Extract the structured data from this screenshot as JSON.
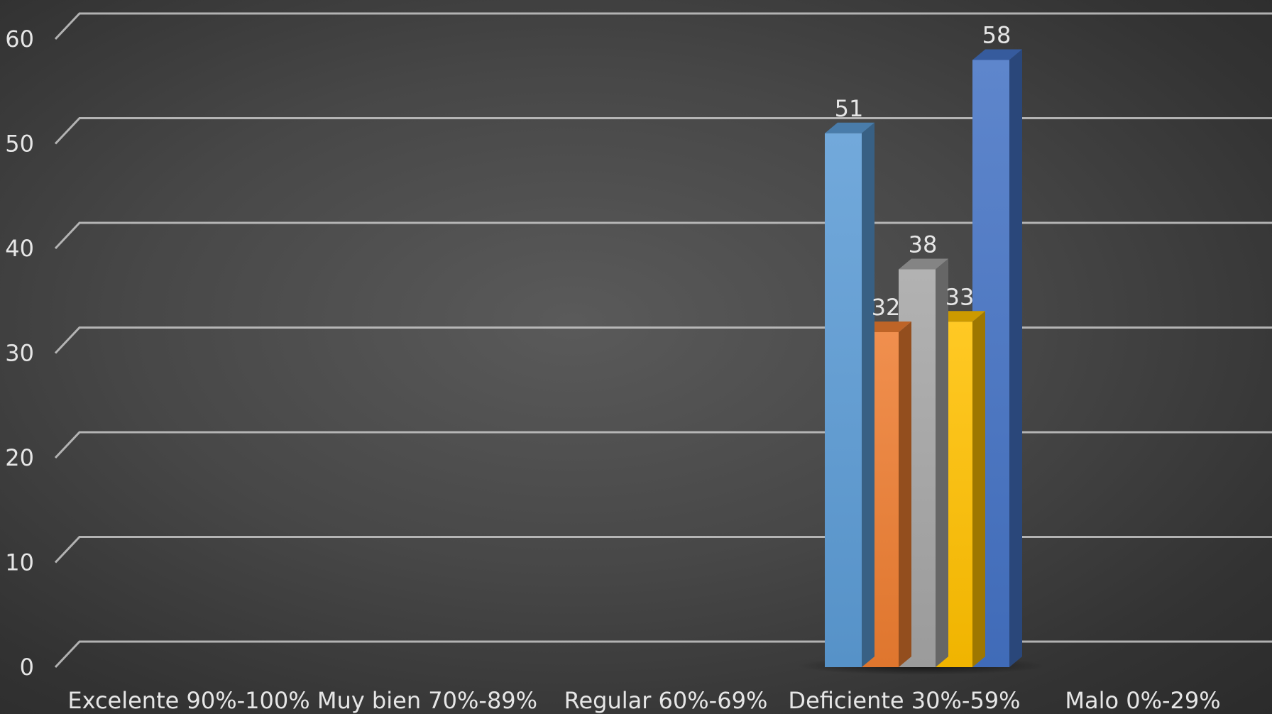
{
  "chart_data": {
    "type": "bar",
    "title": "",
    "xlabel": "",
    "ylabel": "",
    "ylim": [
      0,
      60
    ],
    "yticks": [
      0,
      10,
      20,
      30,
      40,
      50,
      60
    ],
    "grid": true,
    "legend": "none",
    "categories": [
      "Excelente  90%-100%",
      "Muy bien 70%-89%",
      "Regular 60%-69%",
      "Deficiente 30%-59%",
      "Malo 0%-29%"
    ],
    "series": [
      {
        "values": [
          null,
          null,
          null,
          51,
          null
        ],
        "color": "#5b9bd5"
      },
      {
        "values": [
          null,
          null,
          null,
          32,
          null
        ],
        "color": "#ed7d31"
      },
      {
        "values": [
          null,
          null,
          null,
          38,
          null
        ],
        "color": "#a5a5a5"
      },
      {
        "values": [
          null,
          null,
          null,
          33,
          null
        ],
        "color": "#ffc000"
      },
      {
        "values": [
          null,
          null,
          null,
          58,
          null
        ],
        "color": "#4472c4"
      }
    ]
  }
}
